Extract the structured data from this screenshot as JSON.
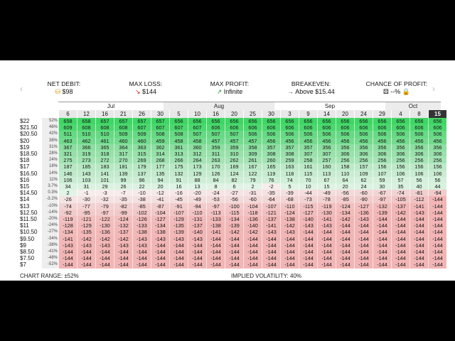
{
  "nav": {
    "prev_arrow": "‹",
    "next_arrow": "›"
  },
  "stats": {
    "net_debit": {
      "label": "NET DEBIT:",
      "value": "$98",
      "icon": "coins-icon"
    },
    "max_loss": {
      "label": "MAX LOSS:",
      "value": "$144",
      "icon": "arrow-down-right-icon",
      "color": "#d02020"
    },
    "max_profit": {
      "label": "MAX PROFIT:",
      "value": "Infinite",
      "icon": "arrow-up-right-icon",
      "color": "#1a9a30"
    },
    "breakeven": {
      "label": "BREAKEVEN:",
      "value": "Above $15.44",
      "icon": "arrow-right-icon"
    },
    "chance": {
      "label": "CHANCE OF PROFIT:",
      "value": "--%",
      "icon": "dice-icon"
    }
  },
  "months": [
    "Jul",
    "Aug",
    "Sep",
    "Oct"
  ],
  "dates": [
    "6",
    "12",
    "16",
    "21",
    "26",
    "30",
    "5",
    "10",
    "16",
    "20",
    "25",
    "30",
    "3",
    "9",
    "14",
    "20",
    "24",
    "29",
    "4",
    "8",
    "15"
  ],
  "selected_date": "15",
  "rows": [
    {
      "price": "$22",
      "pct": "52%",
      "cells": [
        "658",
        "658",
        "657",
        "657",
        "657",
        "657",
        "656",
        "656",
        "656",
        "656",
        "656",
        "656",
        "656",
        "656",
        "656",
        "656",
        "656",
        "656",
        "656",
        "656",
        "656"
      ]
    },
    {
      "price": "$21.50",
      "pct": "46%",
      "cells": [
        "609",
        "608",
        "608",
        "608",
        "607",
        "607",
        "607",
        "607",
        "606",
        "606",
        "606",
        "606",
        "606",
        "606",
        "606",
        "606",
        "606",
        "606",
        "606",
        "606",
        "606"
      ]
    },
    {
      "price": "$20.50",
      "pct": "42%",
      "cells": [
        "511",
        "510",
        "510",
        "509",
        "509",
        "508",
        "508",
        "507",
        "507",
        "507",
        "506",
        "506",
        "506",
        "506",
        "506",
        "506",
        "506",
        "506",
        "506",
        "506",
        "506"
      ]
    },
    {
      "price": "$20",
      "pct": "38%",
      "cells": [
        "463",
        "462",
        "461",
        "460",
        "460",
        "459",
        "458",
        "458",
        "457",
        "457",
        "457",
        "456",
        "456",
        "456",
        "456",
        "456",
        "456",
        "456",
        "456",
        "456",
        "456"
      ]
    },
    {
      "price": "$19",
      "pct": "31%",
      "cells": [
        "367",
        "366",
        "365",
        "364",
        "363",
        "362",
        "361",
        "360",
        "359",
        "359",
        "358",
        "357",
        "357",
        "357",
        "356",
        "356",
        "356",
        "356",
        "356",
        "356",
        "356"
      ]
    },
    {
      "price": "$18.50",
      "pct": "28%",
      "cells": [
        "321",
        "319",
        "318",
        "317",
        "315",
        "314",
        "313",
        "312",
        "311",
        "310",
        "309",
        "308",
        "308",
        "307",
        "307",
        "306",
        "306",
        "306",
        "306",
        "306",
        "306"
      ]
    },
    {
      "price": "$18",
      "pct": "24%",
      "cells": [
        "275",
        "273",
        "272",
        "270",
        "269",
        "268",
        "266",
        "264",
        "263",
        "262",
        "261",
        "260",
        "259",
        "258",
        "257",
        "256",
        "256",
        "256",
        "256",
        "256",
        "256"
      ]
    },
    {
      "price": "$17",
      "pct": "18%",
      "cells": [
        "187",
        "185",
        "183",
        "181",
        "179",
        "177",
        "175",
        "173",
        "170",
        "169",
        "167",
        "165",
        "163",
        "161",
        "160",
        "158",
        "157",
        "156",
        "156",
        "156",
        "156"
      ]
    },
    {
      "price": "$16.50",
      "pct": "14%",
      "cells": [
        "146",
        "143",
        "141",
        "139",
        "137",
        "135",
        "132",
        "129",
        "126",
        "124",
        "122",
        "119",
        "118",
        "115",
        "113",
        "110",
        "109",
        "107",
        "106",
        "106",
        "106"
      ]
    },
    {
      "price": "$16",
      "pct": "11%",
      "cells": [
        "106",
        "103",
        "101",
        "99",
        "96",
        "94",
        "91",
        "88",
        "84",
        "82",
        "79",
        "76",
        "74",
        "70",
        "67",
        "64",
        "62",
        "59",
        "57",
        "56",
        "56"
      ]
    },
    {
      "price": "$15",
      "pct": "3.7%",
      "cells": [
        "34",
        "31",
        "29",
        "26",
        "22",
        "20",
        "16",
        "13",
        "8",
        "6",
        "2",
        "-2",
        "5",
        "10",
        "15",
        "20",
        "24",
        "30",
        "35",
        "40",
        "44"
      ]
    },
    {
      "price": "$14.50",
      "pct": "0.3%",
      "cells": [
        "2",
        "-1",
        "-3",
        "-7",
        "-10",
        "-12",
        "-16",
        "-20",
        "-24",
        "-27",
        "-31",
        "-35",
        "-39",
        "-44",
        "-49",
        "-56",
        "-60",
        "-67",
        "-74",
        "-81",
        "-94"
      ]
    },
    {
      "price": "$14",
      "pct": "-3.2%",
      "cells": [
        "-26",
        "-30",
        "-32",
        "-35",
        "-38",
        "-41",
        "-45",
        "-49",
        "-53",
        "-56",
        "-60",
        "-64",
        "-68",
        "-73",
        "-78",
        "-85",
        "-90",
        "-97",
        "-105",
        "-112",
        "-144"
      ]
    },
    {
      "price": "$13",
      "pct": "-10%",
      "cells": [
        "-74",
        "-77",
        "-79",
        "-82",
        "-85",
        "-87",
        "-91",
        "-94",
        "-97",
        "-100",
        "-104",
        "-107",
        "-110",
        "-115",
        "-119",
        "-124",
        "-127",
        "-132",
        "-137",
        "-141",
        "-144"
      ]
    },
    {
      "price": "$12.50",
      "pct": "-14%",
      "cells": [
        "-92",
        "-95",
        "-97",
        "-99",
        "-102",
        "-104",
        "-107",
        "-110",
        "-113",
        "-115",
        "-118",
        "-121",
        "-124",
        "-127",
        "-130",
        "-134",
        "-136",
        "-139",
        "-142",
        "-143",
        "-144"
      ]
    },
    {
      "price": "$11.50",
      "pct": "-20%",
      "cells": [
        "-119",
        "-121",
        "-122",
        "-124",
        "-126",
        "-127",
        "-129",
        "-131",
        "-133",
        "-134",
        "-136",
        "-137",
        "-138",
        "-140",
        "-141",
        "-142",
        "-143",
        "-144",
        "-144",
        "-144",
        "-144"
      ]
    },
    {
      "price": "$11",
      "pct": "-24%",
      "cells": [
        "-128",
        "-129",
        "-130",
        "-132",
        "-133",
        "-134",
        "-135",
        "-137",
        "-138",
        "-139",
        "-140",
        "-141",
        "-142",
        "-143",
        "-143",
        "-144",
        "-144",
        "-144",
        "-144",
        "-144",
        "-144"
      ]
    },
    {
      "price": "$10.50",
      "pct": "-27%",
      "cells": [
        "-134",
        "-135",
        "-136",
        "-137",
        "-138",
        "-138",
        "-139",
        "-140",
        "-141",
        "-142",
        "-142",
        "-143",
        "-143",
        "-144",
        "-144",
        "-144",
        "-144",
        "-144",
        "-144",
        "-144",
        "-144"
      ]
    },
    {
      "price": "$9.50",
      "pct": "-34%",
      "cells": [
        "-141",
        "-142",
        "-142",
        "-142",
        "-143",
        "-143",
        "-143",
        "-143",
        "-144",
        "-144",
        "-144",
        "-144",
        "-144",
        "-144",
        "-144",
        "-144",
        "-144",
        "-144",
        "-144",
        "-144",
        "-144"
      ]
    },
    {
      "price": "$9",
      "pct": "-38%",
      "cells": [
        "-143",
        "-143",
        "-143",
        "-143",
        "-143",
        "-144",
        "-144",
        "-144",
        "-144",
        "-144",
        "-144",
        "-144",
        "-144",
        "-144",
        "-144",
        "-144",
        "-144",
        "-144",
        "-144",
        "-144",
        "-144"
      ]
    },
    {
      "price": "$8.50",
      "pct": "-41%",
      "cells": [
        "-144",
        "-144",
        "-144",
        "-144",
        "-144",
        "-144",
        "-144",
        "-144",
        "-144",
        "-144",
        "-144",
        "-144",
        "-144",
        "-144",
        "-144",
        "-144",
        "-144",
        "-144",
        "-144",
        "-144",
        "-144"
      ]
    },
    {
      "price": "$7.50",
      "pct": "-48%",
      "cells": [
        "-144",
        "-144",
        "-144",
        "-144",
        "-144",
        "-144",
        "-144",
        "-144",
        "-144",
        "-144",
        "-144",
        "-144",
        "-144",
        "-144",
        "-144",
        "-144",
        "-144",
        "-144",
        "-144",
        "-144",
        "-144"
      ]
    },
    {
      "price": "$7",
      "pct": "-52%",
      "cells": [
        "-144",
        "-144",
        "-144",
        "-144",
        "-144",
        "-144",
        "-144",
        "-144",
        "-144",
        "-144",
        "-144",
        "-144",
        "-144",
        "-144",
        "-144",
        "-144",
        "-144",
        "-144",
        "-144",
        "-144",
        "-144"
      ]
    }
  ],
  "footer": {
    "chart_range": "CHART RANGE: ±52%",
    "implied_volatility": "IMPLIED VOLATILITY: 40%"
  },
  "colors": {
    "profit": "#3ccf5f",
    "loss": "#f1b9b9",
    "selected": "#333333"
  }
}
